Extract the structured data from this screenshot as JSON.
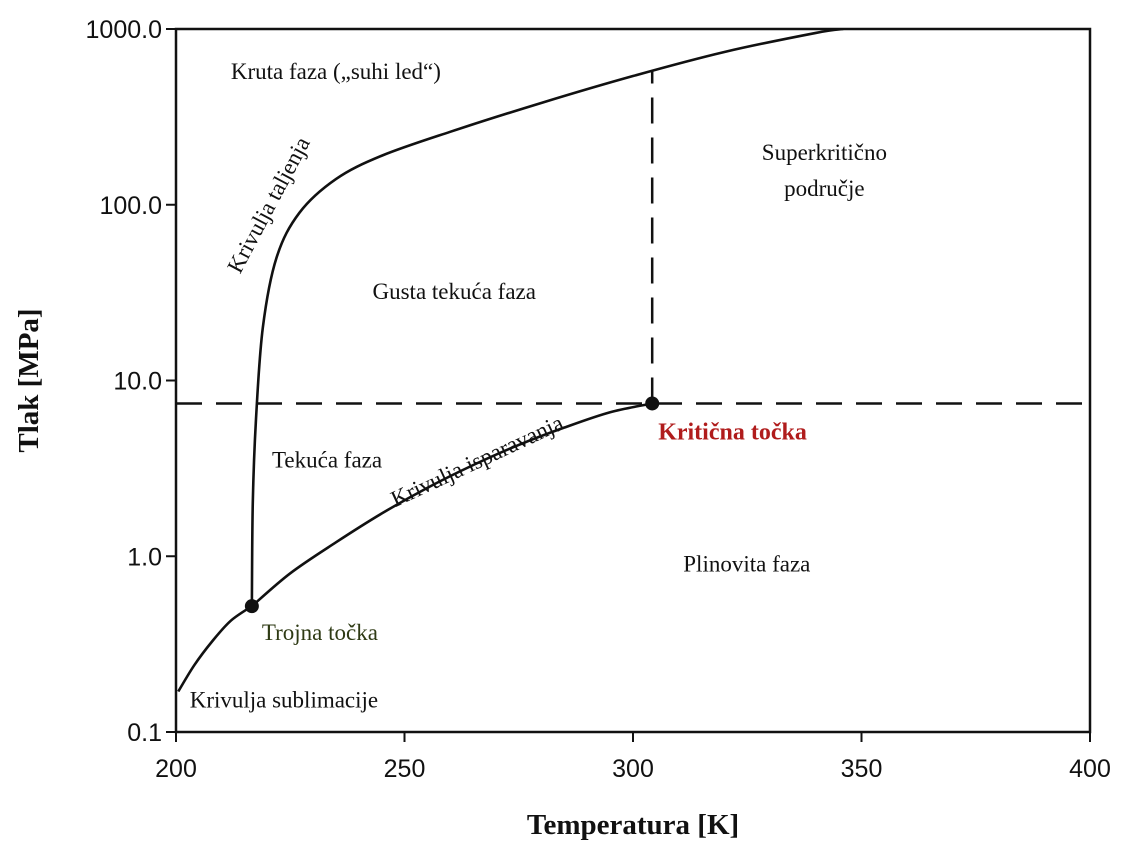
{
  "chart_data": {
    "type": "line",
    "xlabel": "Temperatura [K]",
    "ylabel": "Tlak [MPa]",
    "xlim": [
      200,
      400
    ],
    "ylim": [
      0.1,
      1000
    ],
    "yscale": "log",
    "grid": false,
    "x_ticks": [
      200,
      250,
      300,
      350,
      400
    ],
    "x_tick_labels": [
      "200",
      "250",
      "300",
      "350",
      "400"
    ],
    "y_ticks": [
      0.1,
      1,
      10,
      100,
      1000
    ],
    "y_tick_labels": [
      "0.1",
      "1.0",
      "10.0",
      "100.0",
      "1000.0"
    ],
    "series": [
      {
        "name": "Krivulja sublimacije",
        "style": "solid",
        "points": [
          [
            200.5,
            0.17
          ],
          [
            204,
            0.24
          ],
          [
            208,
            0.33
          ],
          [
            212,
            0.43
          ],
          [
            216.6,
            0.52
          ]
        ]
      },
      {
        "name": "Krivulja isparavanja",
        "style": "solid",
        "points": [
          [
            216.6,
            0.52
          ],
          [
            225,
            0.8
          ],
          [
            235,
            1.2
          ],
          [
            245,
            1.75
          ],
          [
            255,
            2.45
          ],
          [
            265,
            3.3
          ],
          [
            275,
            4.3
          ],
          [
            285,
            5.4
          ],
          [
            295,
            6.6
          ],
          [
            304.2,
            7.4
          ]
        ]
      },
      {
        "name": "Krivulja taljenja",
        "style": "solid",
        "points": [
          [
            216.6,
            0.52
          ],
          [
            216.8,
            2
          ],
          [
            217.5,
            6
          ],
          [
            219,
            20
          ],
          [
            222,
            50
          ],
          [
            227,
            90
          ],
          [
            235,
            140
          ],
          [
            245,
            190
          ],
          [
            260,
            260
          ],
          [
            280,
            380
          ],
          [
            300,
            540
          ],
          [
            320,
            740
          ],
          [
            340,
            950
          ],
          [
            346,
            1000
          ]
        ]
      }
    ],
    "reference_lines": [
      {
        "orientation": "horizontal",
        "y": 7.4,
        "style": "dashed"
      },
      {
        "orientation": "vertical",
        "x": 304.2,
        "y_from": 7.4,
        "y_to": 580,
        "style": "dashed"
      }
    ],
    "points": [
      {
        "label": "Trojna točka",
        "x": 216.6,
        "y": 0.52,
        "color": "#2e3a14"
      },
      {
        "label": "Kritična točka",
        "x": 304.2,
        "y": 7.4,
        "color": "#b01c1c"
      }
    ],
    "region_labels": [
      {
        "lines": [
          "Kruta faza („suhi led“)"
        ],
        "x": 212,
        "y": 520
      },
      {
        "lines": [
          "Gusta tekuća faza"
        ],
        "x": 243,
        "y": 29
      },
      {
        "lines": [
          "Superkritično",
          "područje"
        ],
        "x": 327,
        "y": 180
      },
      {
        "lines": [
          "Tekuća faza"
        ],
        "x": 221,
        "y": 3.2
      },
      {
        "lines": [
          "Plinovita faza"
        ],
        "x": 311,
        "y": 0.82
      },
      {
        "lines": [
          "Krivulja sublimacije"
        ],
        "x": 203,
        "y": 0.138
      }
    ],
    "curve_labels": [
      {
        "text": "Krivulja taljenja",
        "x": 214,
        "y": 40,
        "angle": -62
      },
      {
        "text": "Krivulja isparavanja",
        "x": 248,
        "y": 1.9,
        "angle": -25
      }
    ]
  }
}
